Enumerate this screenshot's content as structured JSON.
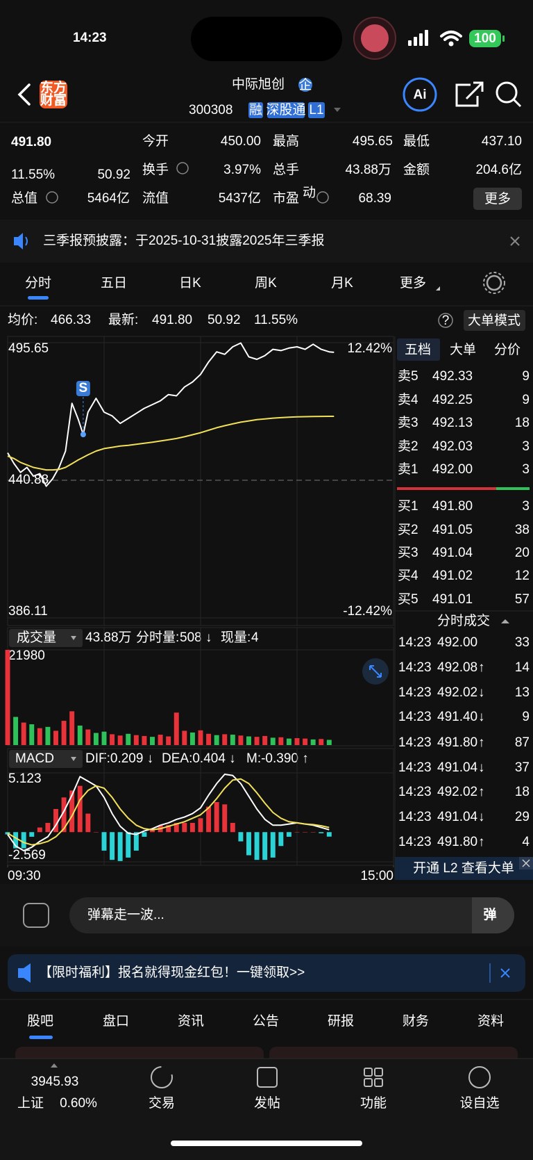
{
  "status": {
    "time": "14:23",
    "battery": "100"
  },
  "header": {
    "logo": [
      "东方",
      "财富"
    ],
    "title": "中际旭创",
    "badge": "企",
    "code": "300308",
    "tags": [
      "融",
      "深股通",
      "L1"
    ],
    "ai": "Ai"
  },
  "quote": {
    "price": "491.80",
    "change_pct": "11.55%",
    "change": "50.92",
    "open_label": "今开",
    "open": "450.00",
    "high_label": "最高",
    "high": "495.65",
    "low_label": "最低",
    "low": "437.10",
    "turnover_label": "换手",
    "turnover": "3.97%",
    "volume_label": "总手",
    "volume": "43.88万",
    "amount_label": "金额",
    "amount": "204.6亿",
    "total_value_label": "总值",
    "total_value": "5464亿",
    "float_label": "流值",
    "float": "5437亿",
    "pe_label": "市盈",
    "pe_sup": "动",
    "pe": "68.39",
    "more": "更多"
  },
  "notice": "三季报预披露：于2025-10-31披露2025年三季报",
  "tabs": [
    "分时",
    "五日",
    "日K",
    "周K",
    "月K",
    "更多"
  ],
  "chart_info": {
    "avg_label": "均价:",
    "avg": "466.33",
    "last_label": "最新:",
    "last": "491.80",
    "change": "50.92",
    "change_pct": "11.55%",
    "mode": "大单模式"
  },
  "volume_info": {
    "selector": "成交量",
    "total": "43.88万",
    "minute_label": "分时量:",
    "minute": "508 ↓",
    "current_label": "现量:",
    "current": "4"
  },
  "macd_info": {
    "selector": "MACD",
    "dif": "DIF:0.209 ↓",
    "dea": "DEA:0.404 ↓",
    "m": "M:-0.390 ↑"
  },
  "book": {
    "tabs": [
      "五档",
      "大单",
      "分价"
    ],
    "asks": [
      {
        "label": "卖5",
        "price": "492.33",
        "qty": "9"
      },
      {
        "label": "卖4",
        "price": "492.25",
        "qty": "9"
      },
      {
        "label": "卖3",
        "price": "492.13",
        "qty": "18"
      },
      {
        "label": "卖2",
        "price": "492.03",
        "qty": "3"
      },
      {
        "label": "卖1",
        "price": "492.00",
        "qty": "3"
      }
    ],
    "bids": [
      {
        "label": "买1",
        "price": "491.80",
        "qty": "3"
      },
      {
        "label": "买2",
        "price": "491.05",
        "qty": "38"
      },
      {
        "label": "买3",
        "price": "491.04",
        "qty": "20"
      },
      {
        "label": "买4",
        "price": "491.02",
        "qty": "12"
      },
      {
        "label": "买5",
        "price": "491.01",
        "qty": "57"
      }
    ],
    "trades_title": "分时成交",
    "trades": [
      {
        "time": "14:23",
        "price": "492.00",
        "qty": "33",
        "color": "#2fc25b"
      },
      {
        "time": "14:23",
        "price": "492.08",
        "arrow": "↑",
        "qty": "14",
        "color": "#f23a3a"
      },
      {
        "time": "14:23",
        "price": "492.02",
        "arrow": "↓",
        "qty": "13",
        "color": "#2fc25b"
      },
      {
        "time": "14:23",
        "price": "491.40",
        "arrow": "↓",
        "qty": "9",
        "color": "#2fc25b"
      },
      {
        "time": "14:23",
        "price": "491.80",
        "arrow": "↑",
        "qty": "87",
        "color": "#f23a3a"
      },
      {
        "time": "14:23",
        "price": "491.04",
        "arrow": "↓",
        "qty": "37",
        "color": "#2fc25b"
      },
      {
        "time": "14:23",
        "price": "492.02",
        "arrow": "↑",
        "qty": "18",
        "color": "#f23a3a"
      },
      {
        "time": "14:23",
        "price": "491.04",
        "arrow": "↓",
        "qty": "29",
        "color": "#2fc25b"
      },
      {
        "time": "14:23",
        "price": "491.80",
        "arrow": "↑",
        "qty": "4",
        "color": "#f23a3a"
      }
    ],
    "banner": "开通 L2 查看大单"
  },
  "comment": {
    "placeholder": "弹幕走一波...",
    "button": "弹"
  },
  "ad": "【限时福利】报名就得现金红包！一键领取>>",
  "sub_tabs": [
    "股吧",
    "盘口",
    "资讯",
    "公告",
    "研报",
    "财务",
    "资料"
  ],
  "nav": {
    "index_value": "3945.93",
    "index_name": "上证",
    "index_change": "0.60%",
    "items": [
      "交易",
      "发帖",
      "功能",
      "设自选"
    ]
  },
  "chart_data": [
    {
      "type": "line",
      "xlim": [
        0,
        240
      ],
      "xgrid": [
        60,
        120,
        180
      ],
      "ylim": [
        386.11,
        495.65
      ],
      "yticks": [
        495.65,
        440.88,
        386.11
      ],
      "y2lim": [
        -12.42,
        12.42
      ],
      "y2ticks": [
        {
          "value": 12.42,
          "label": "12.42%"
        },
        {
          "value": -12.42,
          "label": "-12.42%"
        }
      ],
      "x": [
        0,
        4,
        8,
        12,
        16,
        20,
        24,
        28,
        32,
        36,
        40,
        44,
        47,
        50,
        55,
        60,
        65,
        70,
        75,
        80,
        85,
        90,
        95,
        100,
        105,
        110,
        115,
        120,
        125,
        130,
        135,
        140,
        145,
        150,
        155,
        160,
        165,
        170,
        175,
        180,
        185,
        190,
        195,
        200,
        203
      ],
      "series": [
        {
          "color": "#ffffff",
          "values": [
            451.8,
            447.5,
            444.0,
            446.0,
            442.5,
            443.5,
            438.5,
            441.5,
            446.0,
            452.5,
            471.5,
            465.0,
            459.1,
            468.0,
            473.5,
            468.0,
            466.5,
            463.5,
            465.5,
            467.5,
            469.5,
            471.0,
            472.5,
            475.0,
            474.5,
            478.0,
            480.0,
            483.0,
            488.0,
            492.0,
            491.0,
            494.0,
            495.5,
            490.0,
            489.0,
            490.5,
            493.0,
            492.5,
            493.5,
            494.0,
            493.0,
            495.0,
            493.0,
            492.0,
            491.8
          ]
        },
        {
          "color": "#f2e05a",
          "values": [
            450.5,
            449.5,
            448.0,
            447.0,
            446.0,
            445.5,
            445.0,
            445.0,
            445.2,
            446.0,
            447.5,
            449.0,
            450.0,
            451.0,
            452.5,
            453.5,
            454.0,
            454.5,
            454.8,
            455.2,
            455.6,
            456.0,
            456.5,
            457.0,
            457.5,
            458.2,
            459.0,
            459.8,
            460.8,
            461.8,
            462.6,
            463.3,
            464.0,
            464.5,
            465.0,
            465.3,
            465.6,
            465.8,
            466.0,
            466.1,
            466.2,
            466.25,
            466.3,
            466.32,
            466.33
          ]
        }
      ],
      "annotations": [
        {
          "text": "S",
          "x": 47,
          "y": 459.1
        }
      ]
    },
    {
      "type": "bar",
      "xlim": [
        0,
        240
      ],
      "xgrid": [
        60,
        120,
        180
      ],
      "ylim": [
        0,
        21980
      ],
      "yticks": [
        21980
      ],
      "x": [
        0,
        5,
        10,
        15,
        20,
        25,
        30,
        35,
        40,
        45,
        50,
        55,
        60,
        65,
        70,
        75,
        80,
        85,
        90,
        95,
        100,
        105,
        110,
        115,
        120,
        125,
        130,
        135,
        140,
        145,
        150,
        155,
        160,
        165,
        170,
        175,
        180,
        185,
        190,
        195,
        200
      ],
      "series": [
        {
          "color": "#e8333a",
          "values": [
            21980,
            null,
            5200,
            null,
            3900,
            null,
            3300,
            5600,
            7800,
            null,
            3600,
            null,
            null,
            2500,
            2200,
            null,
            2300,
            2100,
            null,
            2400,
            2000,
            7500,
            3300,
            null,
            3400,
            2600,
            null,
            2500,
            null,
            2200,
            null,
            1900,
            2100,
            null,
            1800,
            null,
            1600,
            1500,
            null,
            1400,
            null
          ]
        },
        {
          "color": "#2fc25b",
          "values": [
            null,
            6500,
            null,
            4800,
            null,
            4200,
            null,
            null,
            null,
            4500,
            null,
            2800,
            3100,
            null,
            null,
            2600,
            null,
            null,
            1900,
            null,
            null,
            null,
            null,
            2900,
            null,
            null,
            2300,
            null,
            2400,
            null,
            2000,
            null,
            null,
            1700,
            null,
            1500,
            null,
            null,
            1300,
            null,
            1200
          ]
        }
      ]
    },
    {
      "type": "combo",
      "xlim": [
        0,
        240
      ],
      "xgrid": [
        60,
        120,
        180
      ],
      "ylim": [
        -2.569,
        5.123
      ],
      "yticks": [
        5.123,
        -2.569
      ],
      "xticks": [
        {
          "value": 0,
          "label": "09:30"
        },
        {
          "value": 240,
          "label": "15:00"
        }
      ],
      "x": [
        0,
        5,
        10,
        15,
        20,
        25,
        30,
        35,
        40,
        45,
        50,
        55,
        60,
        65,
        70,
        75,
        80,
        85,
        90,
        95,
        100,
        105,
        110,
        115,
        120,
        125,
        130,
        135,
        140,
        145,
        150,
        155,
        160,
        165,
        170,
        175,
        180,
        185,
        190,
        195,
        200
      ],
      "series": [
        {
          "type": "bar",
          "colors": [
            "#e8333a",
            "#2bd3d6"
          ],
          "values": [
            -0.2,
            -1.4,
            -1.4,
            -0.4,
            0.4,
            0.8,
            2.0,
            3.0,
            3.6,
            4.0,
            1.6,
            0,
            -1.6,
            -2.4,
            -2.5,
            -2.2,
            -1.6,
            -0.4,
            0.2,
            0.6,
            0.6,
            0.8,
            0.8,
            0.8,
            1.2,
            2.2,
            2.6,
            2.4,
            0.8,
            -0.8,
            -2.0,
            -2.4,
            -2.4,
            -2.2,
            -1.2,
            -0.4,
            0,
            0,
            0,
            -0.1,
            -0.39
          ]
        },
        {
          "type": "line",
          "color": "#ffffff",
          "values": [
            -0.2,
            -1.2,
            -1.6,
            -1.3,
            -0.8,
            -0.4,
            0.6,
            1.8,
            3.2,
            4.8,
            4.4,
            4.0,
            3.0,
            1.6,
            0.5,
            -0.1,
            -0.2,
            0.1,
            0.3,
            0.6,
            0.8,
            1.1,
            1.3,
            1.6,
            2.1,
            3.2,
            4.2,
            5.0,
            4.9,
            4.2,
            3.1,
            2.0,
            1.1,
            0.6,
            0.6,
            0.7,
            0.8,
            0.7,
            0.6,
            0.4,
            0.21
          ]
        },
        {
          "type": "line",
          "color": "#f2e05a",
          "values": [
            -0.1,
            -0.5,
            -0.9,
            -1.1,
            -1.0,
            -0.8,
            -0.4,
            0.3,
            1.4,
            2.8,
            3.6,
            4.0,
            3.8,
            3.0,
            2.0,
            1.2,
            0.6,
            0.3,
            0.2,
            0.3,
            0.5,
            0.7,
            0.9,
            1.2,
            1.5,
            2.1,
            2.9,
            3.8,
            4.5,
            4.6,
            4.2,
            3.4,
            2.5,
            1.7,
            1.2,
            0.9,
            0.8,
            0.7,
            0.65,
            0.55,
            0.4
          ]
        }
      ]
    }
  ]
}
